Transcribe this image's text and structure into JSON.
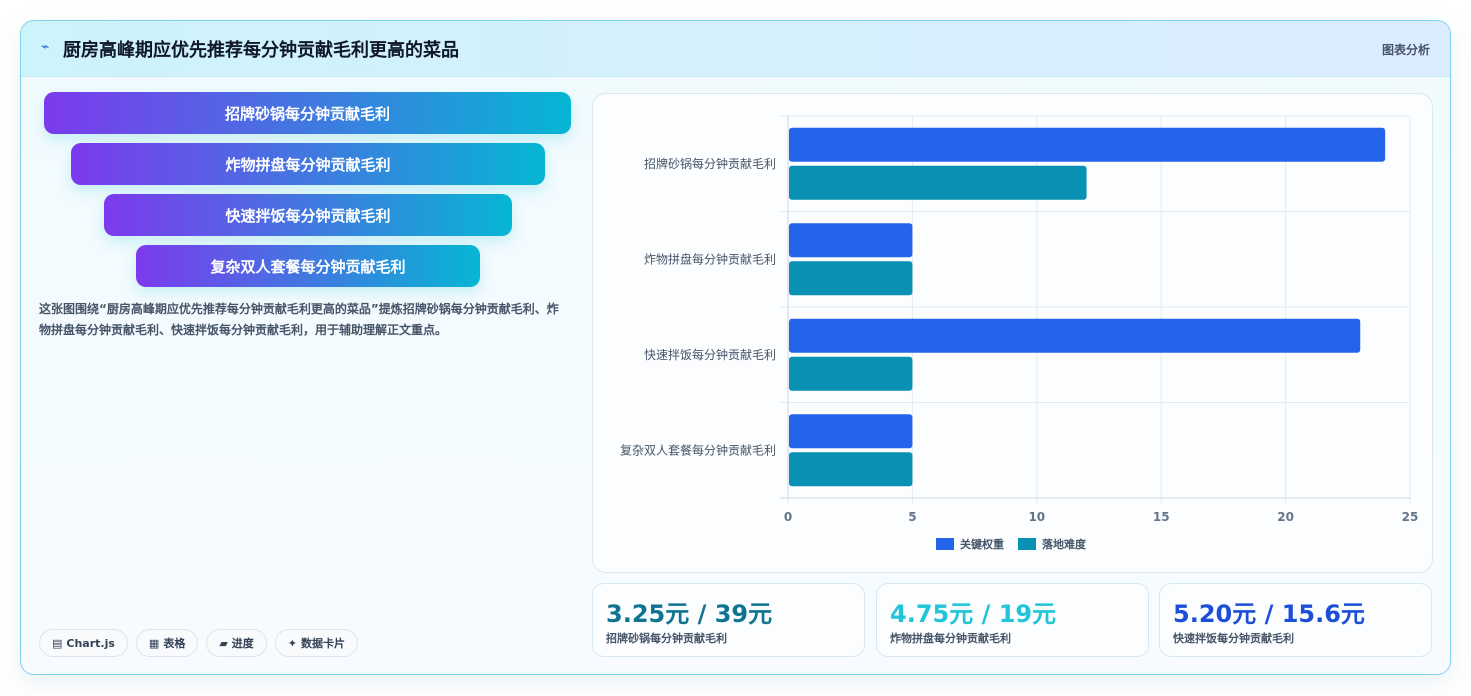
{
  "header": {
    "title": "厨房高峰期应优先推荐每分钟贡献毛利更高的菜品",
    "tag": "图表分析"
  },
  "funnel": [
    "招牌砂锅每分钟贡献毛利",
    "炸物拼盘每分钟贡献毛利",
    "快速拌饭每分钟贡献毛利",
    "复杂双人套餐每分钟贡献毛利"
  ],
  "description": "这张图围绕“厨房高峰期应优先推荐每分钟贡献毛利更高的菜品”提炼招牌砂锅每分钟贡献毛利、炸物拼盘每分钟贡献毛利、快速拌饭每分钟贡献毛利，用于辅助理解正文重点。",
  "pills": [
    {
      "icon": "chart-icon",
      "glyph": "▤",
      "label": "Chart.js"
    },
    {
      "icon": "table-icon",
      "glyph": "▦",
      "label": "表格"
    },
    {
      "icon": "progress-icon",
      "glyph": "▰",
      "label": "进度"
    },
    {
      "icon": "sparkle-icon",
      "glyph": "✦",
      "label": "数据卡片"
    }
  ],
  "chart_data": {
    "type": "bar",
    "orientation": "horizontal",
    "categories": [
      "招牌砂锅每分钟贡献毛利",
      "炸物拼盘每分钟贡献毛利",
      "快速拌饭每分钟贡献毛利",
      "复杂双人套餐每分钟贡献毛利"
    ],
    "series": [
      {
        "name": "关键权重",
        "values": [
          24,
          5,
          23,
          5
        ],
        "color": "#2563eb"
      },
      {
        "name": "落地难度",
        "values": [
          12,
          5,
          5,
          5
        ],
        "color": "#0891b2"
      }
    ],
    "xlim": [
      0,
      25
    ],
    "xticks": [
      "0",
      "5",
      "10",
      "15",
      "20",
      "25"
    ],
    "grid": true,
    "legend": "bottom"
  },
  "stats": [
    {
      "value": "3.25元 / 39元",
      "label": "招牌砂锅每分钟贡献毛利",
      "color": "#0e7490"
    },
    {
      "value": "4.75元 / 19元",
      "label": "炸物拼盘每分钟贡献毛利",
      "color": "#22c5d8"
    },
    {
      "value": "5.20元 / 15.6元",
      "label": "快速拌饭每分钟贡献毛利",
      "color": "#1d4ed8"
    }
  ]
}
